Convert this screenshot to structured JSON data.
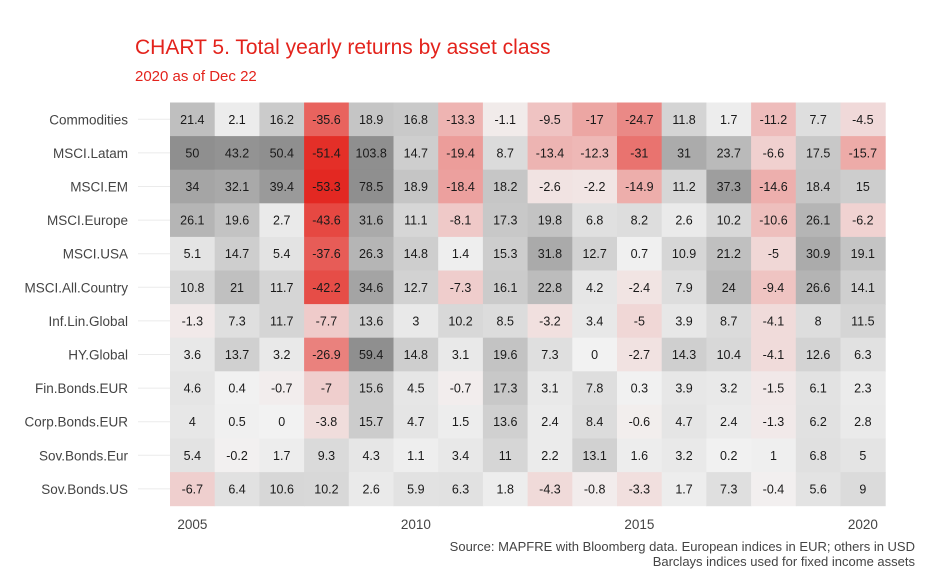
{
  "chart_data": {
    "type": "heatmap",
    "title": "CHART 5. Total yearly returns by asset class",
    "subtitle": "2020 as of Dec 22",
    "source_line1": "Source: MAPFRE with Bloomberg data. European indices in EUR; others in USD",
    "source_line2": "Barclays indices used for fixed income assets",
    "years": [
      2005,
      2006,
      2007,
      2008,
      2009,
      2010,
      2011,
      2012,
      2013,
      2014,
      2015,
      2016,
      2017,
      2018,
      2019,
      2020
    ],
    "x_ticks": [
      "2005",
      "2010",
      "2015",
      "2020"
    ],
    "x_tick_years": [
      2005,
      2010,
      2015,
      2020
    ],
    "rows": [
      {
        "name": "Commodities",
        "values": [
          21.4,
          2.1,
          16.2,
          -35.6,
          18.9,
          16.8,
          -13.3,
          -1.1,
          -9.5,
          -17,
          -24.7,
          11.8,
          1.7,
          -11.2,
          7.7,
          -4.5
        ]
      },
      {
        "name": "MSCI.Latam",
        "values": [
          50,
          43.2,
          50.4,
          -51.4,
          103.8,
          14.7,
          -19.4,
          8.7,
          -13.4,
          -12.3,
          -31,
          31,
          23.7,
          -6.6,
          17.5,
          -15.7
        ]
      },
      {
        "name": "MSCI.EM",
        "values": [
          34,
          32.1,
          39.4,
          -53.3,
          78.5,
          18.9,
          -18.4,
          18.2,
          -2.6,
          -2.2,
          -14.9,
          11.2,
          37.3,
          -14.6,
          18.4,
          15
        ]
      },
      {
        "name": "MSCI.Europe",
        "values": [
          26.1,
          19.6,
          2.7,
          -43.6,
          31.6,
          11.1,
          -8.1,
          17.3,
          19.8,
          6.8,
          8.2,
          2.6,
          10.2,
          -10.6,
          26.1,
          -6.2
        ]
      },
      {
        "name": "MSCI.USA",
        "values": [
          5.1,
          14.7,
          5.4,
          -37.6,
          26.3,
          14.8,
          1.4,
          15.3,
          31.8,
          12.7,
          0.7,
          10.9,
          21.2,
          -5,
          30.9,
          19.1
        ]
      },
      {
        "name": "MSCI.All.Country",
        "values": [
          10.8,
          21,
          11.7,
          -42.2,
          34.6,
          12.7,
          -7.3,
          16.1,
          22.8,
          4.2,
          -2.4,
          7.9,
          24,
          -9.4,
          26.6,
          14.1
        ]
      },
      {
        "name": "Inf.Lin.Global",
        "values": [
          -1.3,
          7.3,
          11.7,
          -7.7,
          13.6,
          3,
          10.2,
          8.5,
          -3.2,
          3.4,
          -5,
          3.9,
          8.7,
          -4.1,
          8,
          11.5
        ]
      },
      {
        "name": "HY.Global",
        "values": [
          3.6,
          13.7,
          3.2,
          -26.9,
          59.4,
          14.8,
          3.1,
          19.6,
          7.3,
          0,
          -2.7,
          14.3,
          10.4,
          -4.1,
          12.6,
          6.3
        ]
      },
      {
        "name": "Fin.Bonds.EUR",
        "values": [
          4.6,
          0.4,
          -0.7,
          -7,
          15.6,
          4.5,
          -0.7,
          17.3,
          3.1,
          7.8,
          0.3,
          3.9,
          3.2,
          -1.5,
          6.1,
          2.3
        ]
      },
      {
        "name": "Corp.Bonds.EUR",
        "values": [
          4,
          0.5,
          0,
          -3.8,
          15.7,
          4.7,
          1.5,
          13.6,
          2.4,
          8.4,
          -0.6,
          4.7,
          2.4,
          -1.3,
          6.2,
          2.8
        ]
      },
      {
        "name": "Sov.Bonds.Eur",
        "values": [
          5.4,
          -0.2,
          1.7,
          9.3,
          4.3,
          1.1,
          3.4,
          11,
          2.2,
          13.1,
          1.6,
          3.2,
          0.2,
          1,
          6.8,
          5
        ]
      },
      {
        "name": "Sov.Bonds.US",
        "values": [
          -6.7,
          6.4,
          10.6,
          10.2,
          2.6,
          5.9,
          6.3,
          1.8,
          -4.3,
          -0.8,
          -3.3,
          1.7,
          7.3,
          -0.4,
          5.6,
          9
        ]
      }
    ],
    "colors": {
      "negative_strong": "#e3231c",
      "positive_strong": "#8f8f8f",
      "neutral": "#f2f2f2",
      "title": "#e3231c",
      "text": "#444444"
    }
  }
}
